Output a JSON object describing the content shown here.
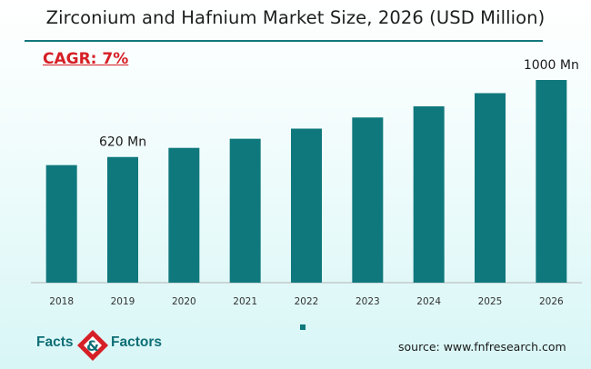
{
  "title": "Zirconium and Hafnium Market Size, 2026 (USD Million)",
  "cagr_label": "CAGR: 7%",
  "source": "source: www.fnfresearch.com",
  "logo": {
    "left": "Facts",
    "amp": "&",
    "right": "Factors"
  },
  "colors": {
    "bar": "#0f787d",
    "rule": "#13777d",
    "cagr": "#d61f26",
    "axis": "#b3b3b3"
  },
  "chart_data": {
    "type": "bar",
    "title": "Zirconium and Hafnium Market Size, 2026 (USD Million)",
    "categories": [
      "2018",
      "2019",
      "2020",
      "2021",
      "2022",
      "2023",
      "2024",
      "2025",
      "2026"
    ],
    "values": [
      580,
      620,
      665,
      710,
      760,
      815,
      870,
      935,
      1000
    ],
    "unit": "USD Million",
    "ylim": [
      0,
      1000
    ],
    "grid": false,
    "legend": "bottom-center",
    "data_labels": [
      {
        "category": "2019",
        "text": "620 Mn"
      },
      {
        "category": "2026",
        "text": "1000 Mn"
      }
    ]
  }
}
